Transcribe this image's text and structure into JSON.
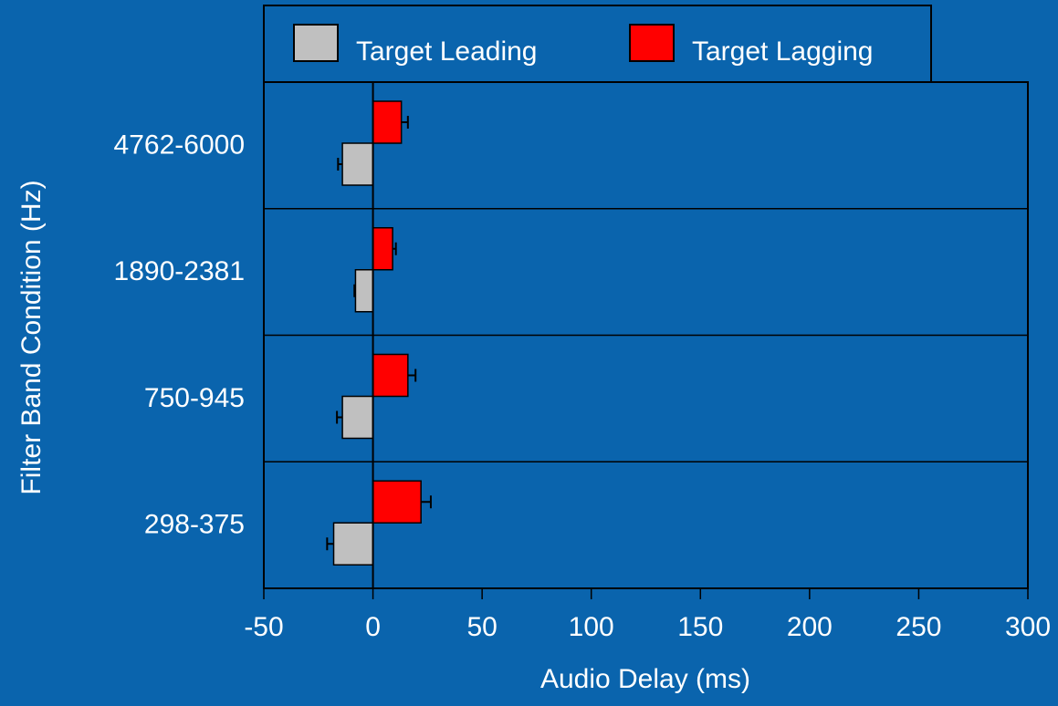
{
  "chart_data": {
    "type": "bar",
    "orientation": "horizontal",
    "xlabel": "Audio Delay (ms)",
    "ylabel": "Filter Band Condition (Hz)",
    "categories": [
      "4762-6000",
      "1890-2381",
      "750-945",
      "298-375"
    ],
    "series": [
      {
        "name": "Target Leading",
        "color": "#c0c0c0",
        "values": [
          -14,
          -8,
          -14,
          -18
        ],
        "errors": [
          2,
          0.5,
          2.5,
          3
        ]
      },
      {
        "name": "Target Lagging",
        "color": "#ff0000",
        "values": [
          13,
          9,
          16,
          22
        ],
        "errors": [
          3,
          1.5,
          3.5,
          4.5
        ]
      }
    ],
    "xlim": [
      -50,
      300
    ],
    "xticks": [
      -50,
      0,
      50,
      100,
      150,
      200,
      250,
      300
    ],
    "legend": "top"
  }
}
